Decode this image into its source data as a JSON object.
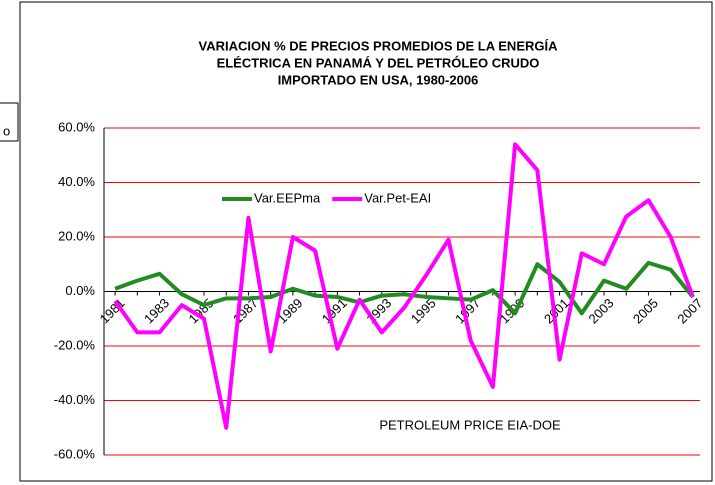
{
  "chart_data": {
    "type": "line",
    "title": [
      "VARIACION % DE PRECIOS PROMEDIOS DE LA ENERGÍA",
      "ELÉCTRICA EN PANAMÁ Y DEL PETRÓLEO CRUDO",
      "IMPORTADO EN USA,    1980-2006"
    ],
    "categories": [
      "1981",
      null,
      "1983",
      null,
      "1985",
      null,
      "1987",
      null,
      "1989",
      null,
      "1991",
      null,
      "1993",
      null,
      "1995",
      null,
      "1997",
      null,
      "1999",
      null,
      "2001",
      null,
      "2003",
      null,
      "2005",
      null,
      "2007"
    ],
    "series": [
      {
        "name": "Var.EEPma",
        "color": "#228b22",
        "values": [
          1,
          4,
          6.5,
          -1,
          -5,
          -2.5,
          -2.5,
          -2,
          1,
          -1.5,
          -2,
          -4,
          -1.5,
          -1,
          -2,
          -2.5,
          -3,
          0.5,
          -8,
          10,
          3.5,
          -8,
          4,
          1,
          10.5,
          8,
          -2
        ]
      },
      {
        "name": "Var.Pet-EAI",
        "color": "#ff00ff",
        "values": [
          -3.5,
          -15,
          -15,
          -5,
          -10,
          -50,
          27,
          -22,
          20,
          15,
          -21,
          -3,
          -15,
          -6,
          6,
          19,
          -18,
          -35,
          54,
          44.5,
          -25,
          14,
          10,
          27.5,
          33.5,
          20,
          -2
        ]
      }
    ],
    "ylim": [
      -60,
      60
    ],
    "yticks": [
      {
        "value": -60,
        "label": "-60.0%"
      },
      {
        "value": -40,
        "label": "-40.0%"
      },
      {
        "value": -20,
        "label": "-20.0%"
      },
      {
        "value": 0,
        "label": "0.0%"
      },
      {
        "value": 20,
        "label": "20.0%"
      },
      {
        "value": 40,
        "label": "40.0%"
      },
      {
        "value": 60,
        "label": "60.0%"
      }
    ],
    "grid": true,
    "grid_color": "#ff0000",
    "annotations": [
      "PETROLEUM PRICE EIA-DOE",
      "o"
    ]
  }
}
